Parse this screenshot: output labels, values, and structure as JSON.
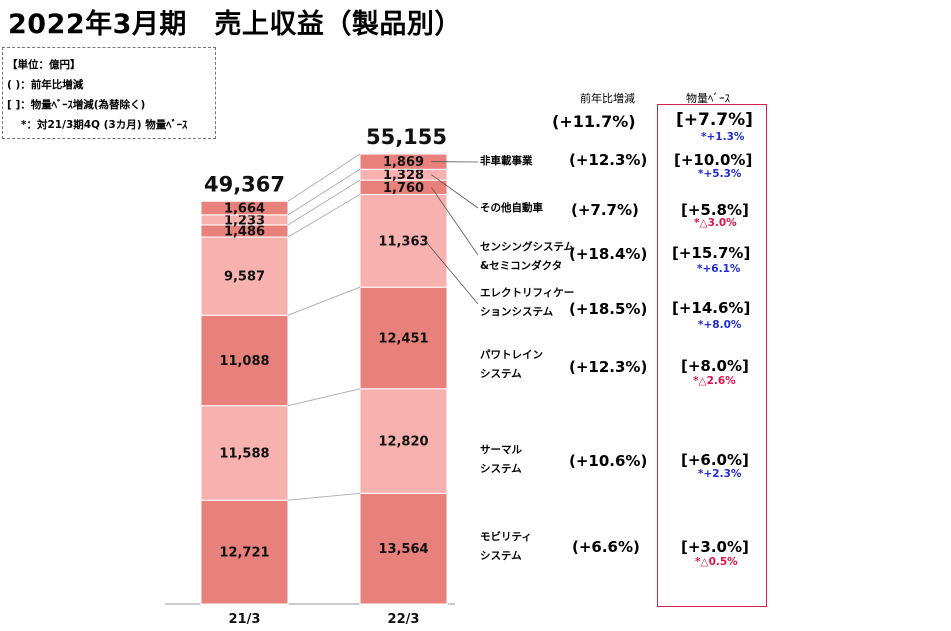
{
  "title": "2022年3月期　売上収益（製品別）",
  "legend": {
    "line1": "【単位：億円】",
    "line2": "(  )：前年比増減",
    "line3": "[  ]：物量ﾍﾞｰｽ増減(為替除く)",
    "line4": "*：対21/3期4Q (3カ月) 物量ﾍﾞｰｽ"
  },
  "columns": {
    "yoy_header": "前年比増減",
    "volume_header": "物量ﾍﾞｰｽ"
  },
  "total_row": {
    "yoy": "(+11.7%)",
    "volume": "[+7.7%]",
    "note": "*+1.3%"
  },
  "colors": {
    "dark": "#e8817c",
    "light": "#f7b2b0",
    "box_border": "#d6204e",
    "positive_note": "#1f2bd6",
    "negative_note": "#e0124a"
  },
  "rows": [
    {
      "label_lines": [
        "非車載事業"
      ],
      "yoy": "(+12.3%)",
      "volume": "[+10.0%]",
      "note": "*+5.3%",
      "note_sign": "pos"
    },
    {
      "label_lines": [
        "その他自動車"
      ],
      "yoy": "(+7.7%)",
      "volume": "[+5.8%]",
      "note": "*△3.0%",
      "note_sign": "neg"
    },
    {
      "label_lines": [
        "センシングシステム",
        "&セミコンダクタ"
      ],
      "yoy": "(+18.4%)",
      "volume": "[+15.7%]",
      "note": "*+6.1%",
      "note_sign": "pos"
    },
    {
      "label_lines": [
        "エレクトリフィケー",
        "ションシステム"
      ],
      "yoy": "(+18.5%)",
      "volume": "[+14.6%]",
      "note": "*+8.0%",
      "note_sign": "pos"
    },
    {
      "label_lines": [
        "パワトレイン",
        "システム"
      ],
      "yoy": "(+12.3%)",
      "volume": "[+8.0%]",
      "note": "*△2.6%",
      "note_sign": "neg"
    },
    {
      "label_lines": [
        "サーマル",
        "システム"
      ],
      "yoy": "(+10.6%)",
      "volume": "[+6.0%]",
      "note": "*+2.3%",
      "note_sign": "pos"
    },
    {
      "label_lines": [
        "モビリティ",
        "システム"
      ],
      "yoy": "(+6.6%)",
      "volume": "[+3.0%]",
      "note": "*△0.5%",
      "note_sign": "neg"
    }
  ],
  "chart_data": {
    "type": "bar",
    "stacked": true,
    "categories": [
      "21/3",
      "22/3"
    ],
    "totals": [
      "49,367",
      "55,155"
    ],
    "series": [
      {
        "name": "モビリティシステム",
        "values": [
          12721,
          13564
        ],
        "labels": [
          "12,721",
          "13,564"
        ],
        "shade": "dark"
      },
      {
        "name": "サーマルシステム",
        "values": [
          11588,
          12820
        ],
        "labels": [
          "11,588",
          "12,820"
        ],
        "shade": "light"
      },
      {
        "name": "パワトレインシステム",
        "values": [
          11088,
          12451
        ],
        "labels": [
          "11,088",
          "12,451"
        ],
        "shade": "dark"
      },
      {
        "name": "エレクトリフィケーションシステム",
        "values": [
          9587,
          11363
        ],
        "labels": [
          "9,587",
          "11,363"
        ],
        "shade": "light"
      },
      {
        "name": "センシングシステム&セミコンダクタ",
        "values": [
          1486,
          1760
        ],
        "labels": [
          "1,486",
          "1,760"
        ],
        "shade": "dark"
      },
      {
        "name": "その他自動車",
        "values": [
          1233,
          1328
        ],
        "labels": [
          "1,233",
          "1,328"
        ],
        "shade": "light"
      },
      {
        "name": "非車載事業",
        "values": [
          1664,
          1869
        ],
        "labels": [
          "1,664",
          "1,869"
        ],
        "shade": "dark"
      }
    ]
  }
}
